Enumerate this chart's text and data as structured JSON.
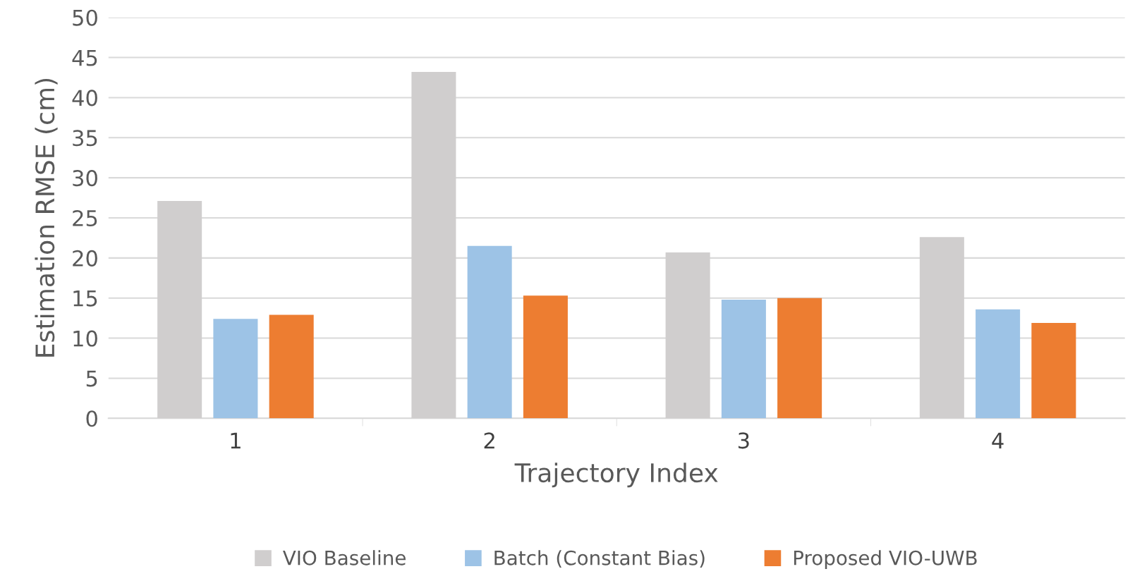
{
  "chart_data": {
    "type": "bar",
    "xlabel": "Trajectory Index",
    "ylabel": "Estimation RMSE (cm)",
    "categories": [
      "1",
      "2",
      "3",
      "4"
    ],
    "series": [
      {
        "name": "VIO Baseline",
        "color": "#d0cece",
        "values": [
          27.1,
          43.2,
          20.7,
          22.6
        ]
      },
      {
        "name": "Batch (Constant Bias)",
        "color": "#9dc3e6",
        "values": [
          12.4,
          21.5,
          14.8,
          13.6
        ]
      },
      {
        "name": "Proposed VIO-UWB",
        "color": "#ed7d31",
        "values": [
          12.9,
          15.3,
          15.0,
          11.9
        ]
      }
    ],
    "ylim": [
      0,
      50
    ],
    "yticks": [
      0,
      5,
      10,
      15,
      20,
      25,
      30,
      35,
      40,
      45,
      50
    ],
    "grid": "y",
    "legend": "bottom"
  }
}
